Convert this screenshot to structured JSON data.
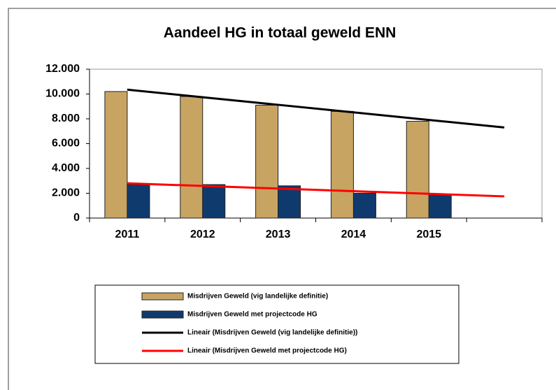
{
  "chart_data": {
    "type": "bar",
    "title": "Aandeel HG in totaal geweld ENN",
    "categories": [
      "2011",
      "2012",
      "2013",
      "2014",
      "2015",
      null
    ],
    "series": [
      {
        "name": "Misdrijven Geweld (vig landelijke definitie)",
        "type": "bar",
        "color": "#c8a463",
        "values": [
          10200,
          9800,
          9100,
          8600,
          7800,
          null
        ]
      },
      {
        "name": "Misdrijven Geweld met projectcode HG",
        "type": "bar",
        "color": "#0f3a6e",
        "values": [
          2700,
          2700,
          2600,
          2000,
          1900,
          null
        ]
      },
      {
        "name": "Lineair (Misdrijven Geweld (vig landelijke definitie))",
        "type": "line",
        "color": "#000000",
        "values": [
          10350,
          9740,
          9130,
          8520,
          7910,
          7300
        ]
      },
      {
        "name": "Lineair (Misdrijven Geweld met projectcode HG)",
        "type": "line",
        "color": "#ff0000",
        "values": [
          2800,
          2590,
          2380,
          2170,
          1960,
          1750
        ]
      }
    ],
    "ylim": [
      0,
      12000
    ],
    "yticks": [
      0,
      {
        "value": 2000,
        "label": "2.000"
      },
      {
        "value": 4000,
        "label": "4.000"
      },
      {
        "value": 6000,
        "label": "6.000"
      },
      {
        "value": 8000,
        "label": "8.000"
      },
      {
        "value": 10000,
        "label": "10.000"
      },
      {
        "value": 12000,
        "label": "12.000"
      }
    ],
    "legend": "bottom"
  }
}
